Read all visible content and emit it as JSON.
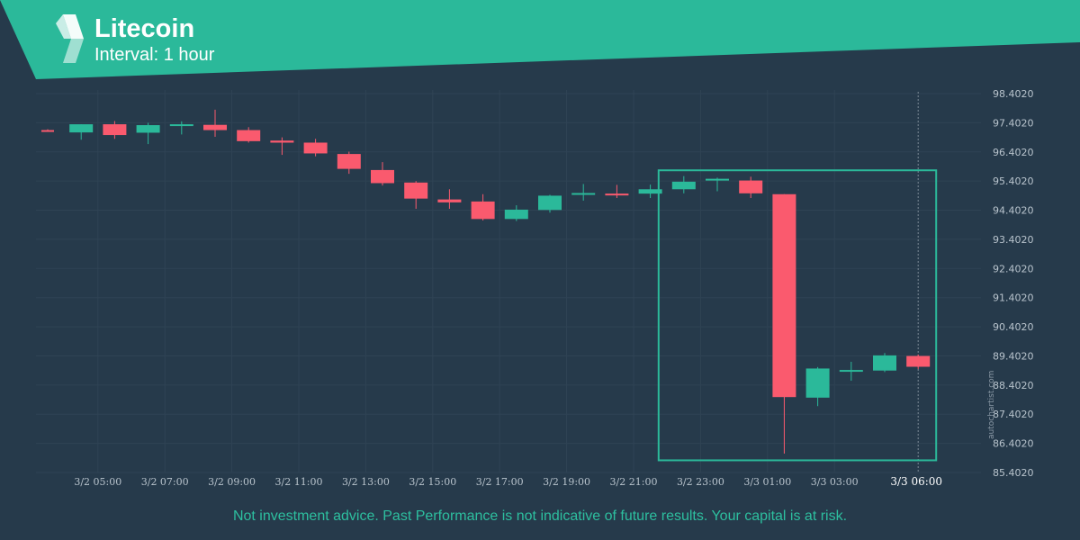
{
  "header": {
    "title": "Litecoin",
    "interval": "Interval: 1 hour",
    "accent_color": "#2bb99a",
    "logo_icon": "autochartist-logo-icon"
  },
  "watermark": "autochartist.com",
  "disclaimer": "Not investment advice. Past Performance is not indicative of future results. Your capital is at risk.",
  "chart_data": {
    "type": "candlestick",
    "title": "",
    "xlabel": "",
    "ylabel": "",
    "ylim": [
      85.402,
      98.402
    ],
    "y_ticks": [
      "98.4020",
      "97.4020",
      "96.4020",
      "95.4020",
      "94.4020",
      "93.4020",
      "92.4020",
      "91.4020",
      "90.4020",
      "89.4020",
      "88.4020",
      "87.4020",
      "86.4020",
      "85.4020"
    ],
    "x_tick_labels": [
      "3/2 05:00",
      "3/2 07:00",
      "3/2 09:00",
      "3/2 11:00",
      "3/2 13:00",
      "3/2 15:00",
      "3/2 17:00",
      "3/2 19:00",
      "3/2 21:00",
      "3/2 23:00",
      "3/3 01:00",
      "3/3 03:00"
    ],
    "current_time_label": "3/3 06:00",
    "grid": true,
    "up_color": "#2bb99a",
    "down_color": "#fa5a6e",
    "candles": [
      {
        "time": "3/2 04:00",
        "open": 97.15,
        "high": 97.18,
        "low": 97.09,
        "close": 97.1
      },
      {
        "time": "3/2 05:00",
        "open": 97.07,
        "high": 97.35,
        "low": 96.82,
        "close": 97.35
      },
      {
        "time": "3/2 06:00",
        "open": 97.35,
        "high": 97.46,
        "low": 96.85,
        "close": 96.98
      },
      {
        "time": "3/2 07:00",
        "open": 97.06,
        "high": 97.4,
        "low": 96.67,
        "close": 97.32
      },
      {
        "time": "3/2 08:00",
        "open": 97.3,
        "high": 97.45,
        "low": 97.0,
        "close": 97.35
      },
      {
        "time": "3/2 09:00",
        "open": 97.33,
        "high": 97.85,
        "low": 96.92,
        "close": 97.15
      },
      {
        "time": "3/2 10:00",
        "open": 97.15,
        "high": 97.25,
        "low": 96.72,
        "close": 96.77
      },
      {
        "time": "3/2 11:00",
        "open": 96.79,
        "high": 96.9,
        "low": 96.3,
        "close": 96.72
      },
      {
        "time": "3/2 12:00",
        "open": 96.72,
        "high": 96.85,
        "low": 96.25,
        "close": 96.35
      },
      {
        "time": "3/2 13:00",
        "open": 96.33,
        "high": 96.41,
        "low": 95.65,
        "close": 95.82
      },
      {
        "time": "3/2 14:00",
        "open": 95.78,
        "high": 96.05,
        "low": 95.25,
        "close": 95.33
      },
      {
        "time": "3/2 15:00",
        "open": 95.35,
        "high": 95.4,
        "low": 94.45,
        "close": 94.8
      },
      {
        "time": "3/2 16:00",
        "open": 94.77,
        "high": 95.12,
        "low": 94.45,
        "close": 94.67
      },
      {
        "time": "3/2 17:00",
        "open": 94.7,
        "high": 94.95,
        "low": 94.05,
        "close": 94.1
      },
      {
        "time": "3/2 18:00",
        "open": 94.1,
        "high": 94.57,
        "low": 94.03,
        "close": 94.42
      },
      {
        "time": "3/2 19:00",
        "open": 94.41,
        "high": 94.93,
        "low": 94.32,
        "close": 94.9
      },
      {
        "time": "3/2 20:00",
        "open": 94.97,
        "high": 95.3,
        "low": 94.73,
        "close": 94.99
      },
      {
        "time": "3/2 21:00",
        "open": 94.97,
        "high": 95.27,
        "low": 94.82,
        "close": 94.95
      },
      {
        "time": "3/2 22:00",
        "open": 94.97,
        "high": 95.28,
        "low": 94.82,
        "close": 95.12
      },
      {
        "time": "3/2 23:00",
        "open": 95.12,
        "high": 95.57,
        "low": 94.98,
        "close": 95.38
      },
      {
        "time": "3/3 00:00",
        "open": 95.43,
        "high": 95.52,
        "low": 95.05,
        "close": 95.48
      },
      {
        "time": "3/3 01:00",
        "open": 95.42,
        "high": 95.55,
        "low": 94.82,
        "close": 94.98
      },
      {
        "time": "3/3 02:00",
        "open": 94.95,
        "high": 94.95,
        "low": 86.05,
        "close": 87.99
      },
      {
        "time": "3/3 03:00",
        "open": 87.97,
        "high": 89.02,
        "low": 87.68,
        "close": 88.97
      },
      {
        "time": "3/3 04:00",
        "open": 88.92,
        "high": 89.2,
        "low": 88.55,
        "close": 88.92
      },
      {
        "time": "3/3 05:00",
        "open": 88.9,
        "high": 89.5,
        "low": 88.85,
        "close": 89.42
      },
      {
        "time": "3/3 06:00",
        "open": 89.4,
        "high": 89.45,
        "low": 88.95,
        "close": 89.03
      }
    ],
    "highlight_box": {
      "start": "3/2 23:00",
      "end": "3/3 06:00",
      "price_high": 95.77,
      "price_low": 85.82,
      "color": "#2bb99a"
    }
  }
}
